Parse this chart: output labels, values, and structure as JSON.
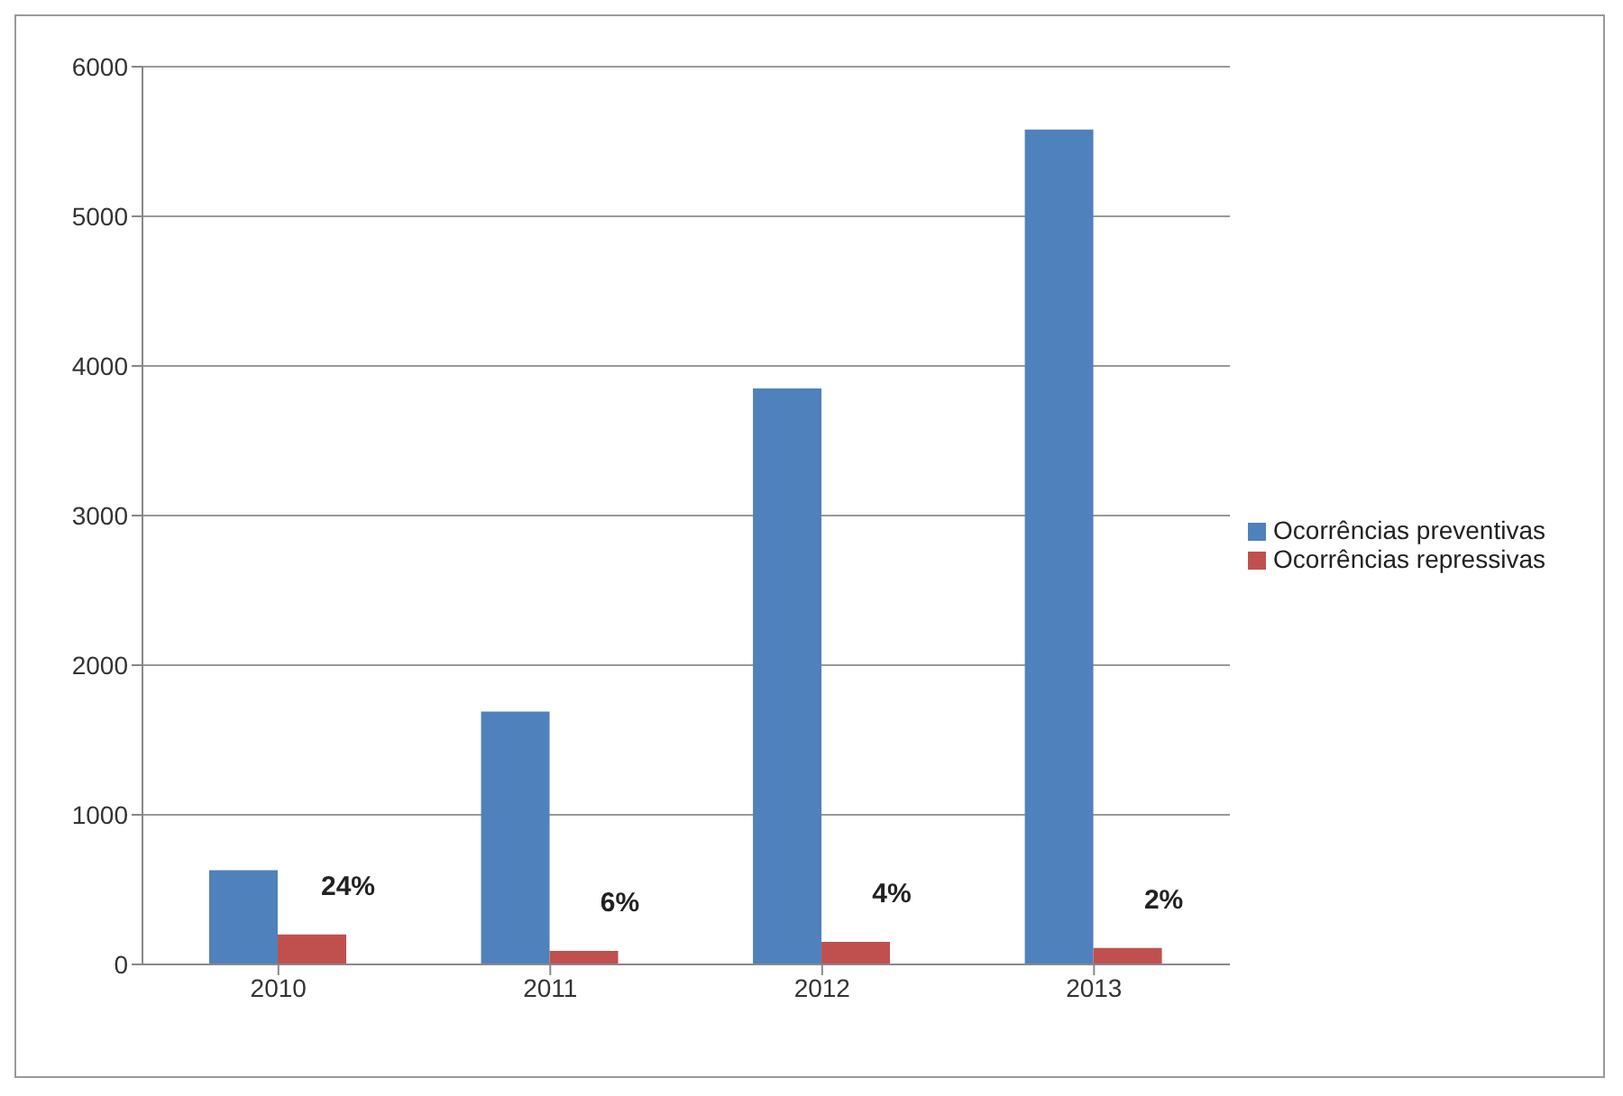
{
  "chart_data": {
    "type": "bar",
    "categories": [
      "2010",
      "2011",
      "2012",
      "2013"
    ],
    "series": [
      {
        "name": "Ocorrências preventivas",
        "color": "#4f81bd",
        "values": [
          630,
          1690,
          3850,
          5580
        ]
      },
      {
        "name": "Ocorrências repressivas",
        "color": "#c0504d",
        "values": [
          200,
          90,
          150,
          110
        ]
      }
    ],
    "annotations": [
      {
        "text": "24%",
        "x": "2010"
      },
      {
        "text": "6%",
        "x": "2011"
      },
      {
        "text": "4%",
        "x": "2012"
      },
      {
        "text": "2%",
        "x": "2013"
      }
    ],
    "ylim": [
      0,
      6000
    ],
    "yticks": [
      0,
      1000,
      2000,
      3000,
      4000,
      5000,
      6000
    ],
    "grid": "y",
    "legend": "right"
  }
}
